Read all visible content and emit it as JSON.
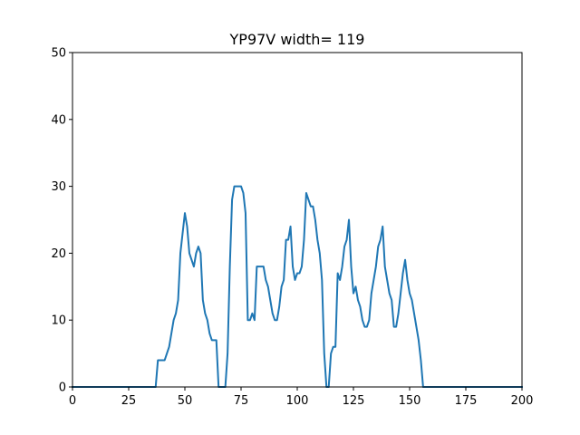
{
  "chart_data": {
    "type": "line",
    "title": "YP97V width= 119",
    "xlabel": "",
    "ylabel": "",
    "xlim": [
      0,
      200
    ],
    "ylim": [
      0,
      50
    ],
    "xticks": [
      0,
      25,
      50,
      75,
      100,
      125,
      150,
      175,
      200
    ],
    "yticks": [
      0,
      10,
      20,
      30,
      40,
      50
    ],
    "grid": false,
    "legend": "none",
    "series": [
      {
        "color": "#1f77b4",
        "x": [
          0,
          36,
          37,
          38,
          39,
          40,
          41,
          42,
          43,
          44,
          45,
          46,
          47,
          48,
          49,
          50,
          51,
          52,
          53,
          54,
          55,
          56,
          57,
          58,
          59,
          60,
          61,
          62,
          63,
          64,
          65,
          66,
          67,
          68,
          69,
          70,
          71,
          72,
          73,
          74,
          75,
          76,
          77,
          78,
          79,
          80,
          81,
          82,
          83,
          84,
          85,
          86,
          87,
          88,
          89,
          90,
          91,
          92,
          93,
          94,
          95,
          96,
          97,
          98,
          99,
          100,
          101,
          102,
          103,
          104,
          105,
          106,
          107,
          108,
          109,
          110,
          111,
          112,
          113,
          114,
          115,
          116,
          117,
          118,
          119,
          120,
          121,
          122,
          123,
          124,
          125,
          126,
          127,
          128,
          129,
          130,
          131,
          132,
          133,
          134,
          135,
          136,
          137,
          138,
          139,
          140,
          141,
          142,
          143,
          144,
          145,
          146,
          147,
          148,
          149,
          150,
          151,
          152,
          153,
          154,
          155,
          156,
          157,
          200
        ],
        "y": [
          0,
          0,
          0,
          4,
          4,
          4,
          4,
          5,
          6,
          8,
          10,
          11,
          13,
          20,
          23,
          26,
          24,
          20,
          19,
          18,
          20,
          21,
          20,
          13,
          11,
          10,
          8,
          7,
          7,
          7,
          0,
          0,
          0,
          0,
          5,
          18,
          28,
          30,
          30,
          30,
          30,
          29,
          26,
          10,
          10,
          11,
          10,
          18,
          18,
          18,
          18,
          16,
          15,
          13,
          11,
          10,
          10,
          12,
          15,
          16,
          22,
          22,
          24,
          18,
          16,
          17,
          17,
          18,
          22,
          29,
          28,
          27,
          27,
          25,
          22,
          20,
          16,
          5,
          0,
          0,
          5,
          6,
          6,
          17,
          16,
          18,
          21,
          22,
          25,
          18,
          14,
          15,
          13,
          12,
          10,
          9,
          9,
          10,
          14,
          16,
          18,
          21,
          22,
          24,
          18,
          16,
          14,
          13,
          9,
          9,
          11,
          14,
          17,
          19,
          16,
          14,
          13,
          11,
          9,
          7,
          4,
          0,
          0,
          0
        ]
      }
    ]
  }
}
